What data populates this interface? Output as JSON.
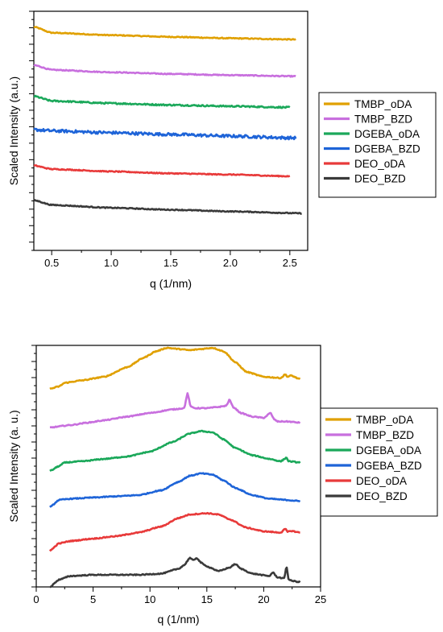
{
  "chart_data": [
    {
      "type": "line",
      "xlabel": "q (1/nm)",
      "ylabel": "Scaled Intensity (a.u.)",
      "xlim": [
        0.35,
        2.65
      ],
      "ylim": [
        0,
        1
      ],
      "xticks": [
        "0.5",
        "1.0",
        "1.5",
        "2.0",
        "2.5"
      ],
      "xtick_values": [
        0.5,
        1.0,
        1.5,
        2.0,
        2.5
      ],
      "legend_position": "right",
      "series": [
        {
          "name": "TMBP_oDA",
          "color": "#E0A000",
          "x": [
            0.35,
            0.5,
            1.0,
            1.5,
            2.0,
            2.55
          ],
          "y": [
            0.935,
            0.91,
            0.9,
            0.893,
            0.887,
            0.882
          ],
          "noise": 0.002
        },
        {
          "name": "TMBP_BZD",
          "color": "#C86FDE",
          "x": [
            0.35,
            0.5,
            1.0,
            1.5,
            2.0,
            2.55
          ],
          "y": [
            0.775,
            0.755,
            0.745,
            0.738,
            0.733,
            0.728
          ],
          "noise": 0.002
        },
        {
          "name": "DGEBA_oDA",
          "color": "#1BA85A",
          "x": [
            0.35,
            0.5,
            1.0,
            1.5,
            2.0,
            2.5
          ],
          "y": [
            0.645,
            0.625,
            0.615,
            0.608,
            0.603,
            0.598
          ],
          "noise": 0.003
        },
        {
          "name": "DGEBA_BZD",
          "color": "#1E64D8",
          "x": [
            0.35,
            0.5,
            1.0,
            1.5,
            2.0,
            2.55
          ],
          "y": [
            0.505,
            0.5,
            0.492,
            0.485,
            0.478,
            0.47
          ],
          "noise": 0.006
        },
        {
          "name": "DEO_oDA",
          "color": "#E83A3A",
          "x": [
            0.35,
            0.5,
            1.0,
            1.5,
            2.0,
            2.5
          ],
          "y": [
            0.355,
            0.34,
            0.33,
            0.322,
            0.317,
            0.31
          ],
          "noise": 0.002
        },
        {
          "name": "DEO_BZD",
          "color": "#3A3A3A",
          "x": [
            0.35,
            0.5,
            1.0,
            1.5,
            2.0,
            2.6
          ],
          "y": [
            0.21,
            0.19,
            0.178,
            0.17,
            0.163,
            0.155
          ],
          "noise": 0.002
        }
      ]
    },
    {
      "type": "line",
      "xlabel": "q (1/nm)",
      "ylabel": "Scaled Intensity (a. u.)",
      "xlim": [
        0,
        25
      ],
      "ylim": [
        0,
        1
      ],
      "xticks": [
        "0",
        "5",
        "10",
        "15",
        "20",
        "25"
      ],
      "xtick_values": [
        0,
        5,
        10,
        15,
        20,
        25
      ],
      "legend_position": "right",
      "series": [
        {
          "name": "TMBP_oDA",
          "color": "#E0A000",
          "x": [
            1.2,
            2,
            2.5,
            4,
            6,
            8,
            9.5,
            10.5,
            11.5,
            12.5,
            13.5,
            14.5,
            15.5,
            16.5,
            17.5,
            18.5,
            20,
            21.5,
            21.9,
            22.1,
            22.4,
            23.2
          ],
          "y": [
            0.82,
            0.83,
            0.845,
            0.855,
            0.87,
            0.91,
            0.95,
            0.975,
            0.99,
            0.985,
            0.98,
            0.985,
            0.99,
            0.975,
            0.93,
            0.89,
            0.87,
            0.865,
            0.88,
            0.87,
            0.875,
            0.86
          ],
          "noise": 0.002
        },
        {
          "name": "TMBP_BZD",
          "color": "#C86FDE",
          "x": [
            1.2,
            3,
            4.5,
            6,
            8,
            10,
            12,
            13,
            13.3,
            13.6,
            14,
            15,
            16,
            16.7,
            17,
            17.3,
            18,
            19,
            20,
            20.6,
            20.9,
            21.2,
            22,
            23.2
          ],
          "y": [
            0.66,
            0.67,
            0.68,
            0.69,
            0.705,
            0.72,
            0.735,
            0.74,
            0.8,
            0.745,
            0.74,
            0.74,
            0.745,
            0.75,
            0.775,
            0.745,
            0.72,
            0.705,
            0.7,
            0.72,
            0.695,
            0.685,
            0.685,
            0.68
          ],
          "noise": 0.002
        },
        {
          "name": "DGEBA_oDA",
          "color": "#1BA85A",
          "x": [
            1.2,
            2,
            2.5,
            4,
            6,
            8,
            10,
            12,
            13.5,
            14.5,
            15.5,
            16.5,
            17.5,
            19,
            20.5,
            21.5,
            22,
            22.2,
            23.2
          ],
          "y": [
            0.48,
            0.5,
            0.515,
            0.52,
            0.53,
            0.54,
            0.56,
            0.6,
            0.635,
            0.645,
            0.64,
            0.61,
            0.575,
            0.545,
            0.53,
            0.52,
            0.535,
            0.52,
            0.515
          ],
          "noise": 0.002
        },
        {
          "name": "DGEBA_BZD",
          "color": "#1E64D8",
          "x": [
            1.2,
            2,
            3,
            5,
            7,
            9,
            11,
            12.5,
            13.5,
            14.5,
            15.5,
            16.5,
            17.5,
            19,
            20.5,
            22,
            23.2
          ],
          "y": [
            0.33,
            0.36,
            0.365,
            0.37,
            0.375,
            0.38,
            0.4,
            0.435,
            0.46,
            0.47,
            0.465,
            0.44,
            0.41,
            0.38,
            0.365,
            0.36,
            0.355
          ],
          "noise": 0.002
        },
        {
          "name": "DEO_oDA",
          "color": "#E83A3A",
          "x": [
            1.2,
            2,
            3,
            5,
            7,
            9,
            11,
            12.5,
            13.5,
            15,
            16,
            17,
            18.5,
            20,
            21.5,
            21.9,
            22.1,
            22.4,
            23.2
          ],
          "y": [
            0.15,
            0.18,
            0.19,
            0.2,
            0.21,
            0.225,
            0.25,
            0.285,
            0.3,
            0.305,
            0.3,
            0.28,
            0.245,
            0.23,
            0.225,
            0.24,
            0.228,
            0.232,
            0.225
          ],
          "noise": 0.002
        },
        {
          "name": "DEO_BZD",
          "color": "#3A3A3A",
          "x": [
            1.2,
            2,
            3,
            5,
            7,
            9,
            11,
            12.5,
            13,
            13.5,
            13.8,
            14.1,
            14.5,
            14.8,
            15.3,
            16,
            17,
            17.5,
            18,
            19,
            20.5,
            20.8,
            21.2,
            21.8,
            22,
            22.2,
            22.5,
            23.2
          ],
          "y": [
            0.0,
            0.03,
            0.045,
            0.05,
            0.05,
            0.05,
            0.055,
            0.075,
            0.09,
            0.12,
            0.11,
            0.12,
            0.1,
            0.09,
            0.08,
            0.065,
            0.08,
            0.095,
            0.075,
            0.055,
            0.045,
            0.06,
            0.04,
            0.035,
            0.085,
            0.03,
            0.025,
            0.02
          ],
          "noise": 0.002
        }
      ]
    }
  ]
}
